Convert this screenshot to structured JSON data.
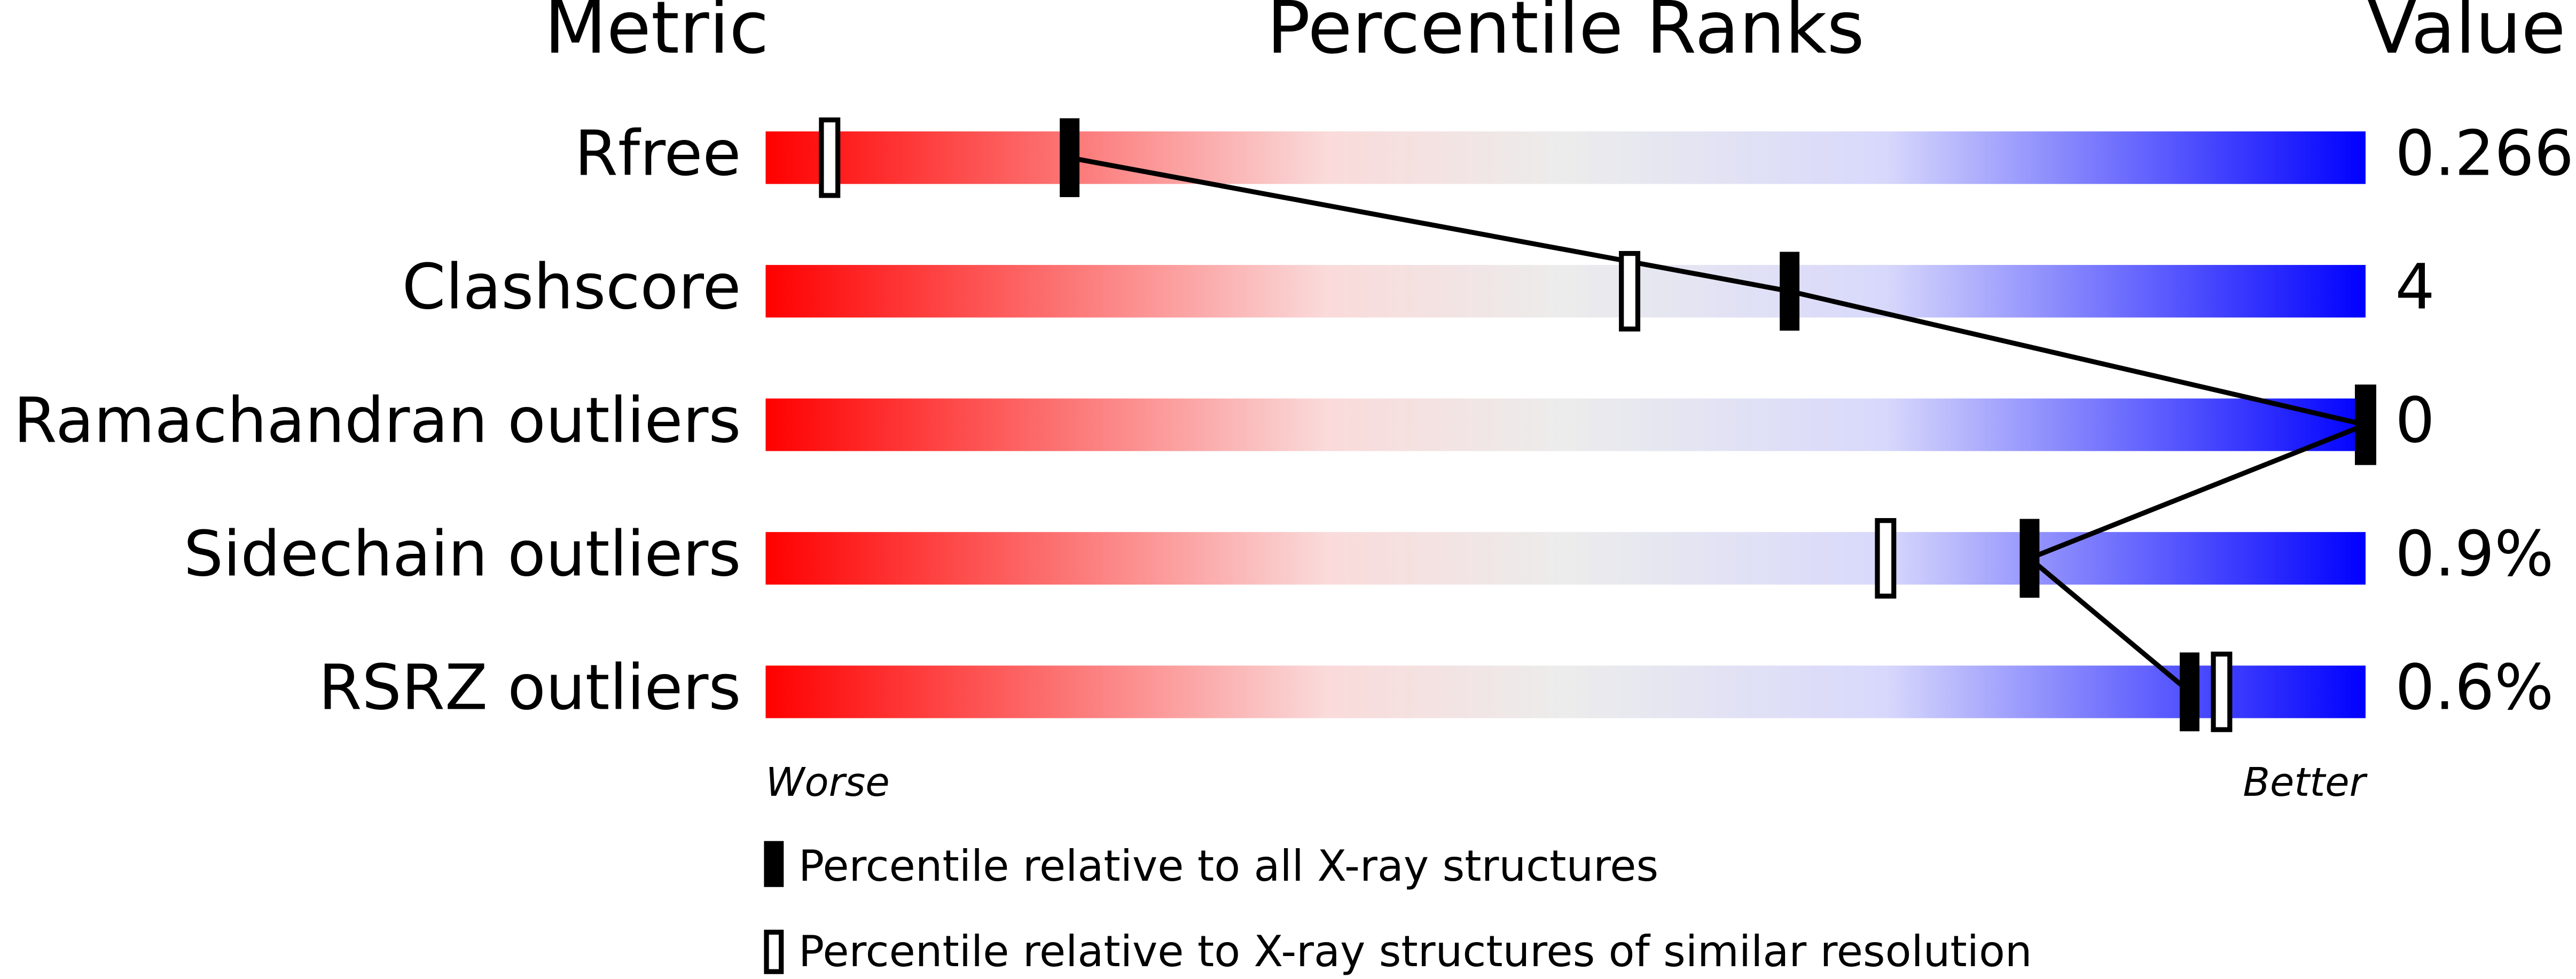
{
  "header": {
    "metric": "Metric",
    "title": "Percentile Ranks",
    "value": "Value"
  },
  "xlim": [
    0,
    100
  ],
  "rows": [
    {
      "metric": "Rfree",
      "value": "0.266",
      "percentile_all": 19,
      "percentile_similar": 4
    },
    {
      "metric": "Clashscore",
      "value": "4",
      "percentile_all": 64,
      "percentile_similar": 54
    },
    {
      "metric": "Ramachandran outliers",
      "value": "0",
      "percentile_all": 100,
      "percentile_similar": 100
    },
    {
      "metric": "Sidechain outliers",
      "value": "0.9%",
      "percentile_all": 79,
      "percentile_similar": 70
    },
    {
      "metric": "RSRZ outliers",
      "value": "0.6%",
      "percentile_all": 89,
      "percentile_similar": 91
    }
  ],
  "axis": {
    "worse": "Worse",
    "better": "Better"
  },
  "legend": {
    "all": "Percentile relative to all X-ray structures",
    "similar": "Percentile relative to X-ray structures of similar resolution"
  }
}
